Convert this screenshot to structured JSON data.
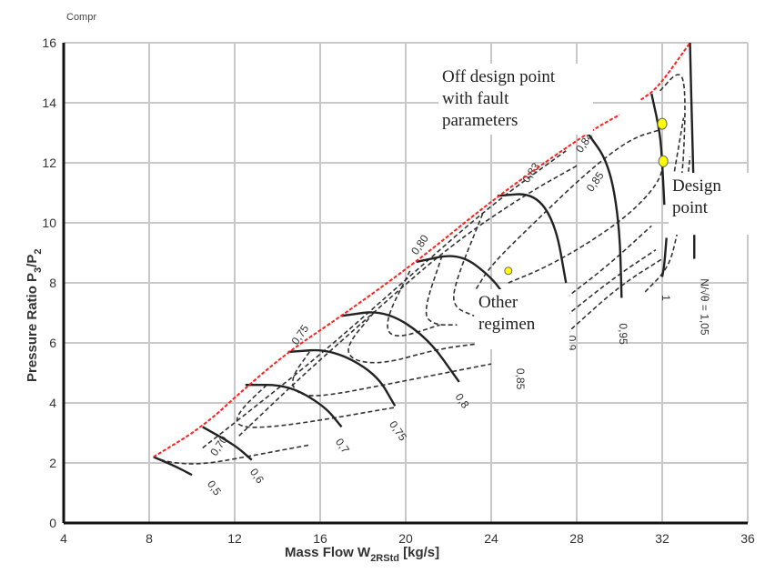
{
  "chart_data": {
    "type": "line",
    "title": "Compr",
    "xlabel": "Mass Flow W",
    "xlabel_sub": "2RStd",
    "xlabel_unit": " [kg/s]",
    "ylabel": "Pressure Ratio P",
    "ylabel_sub1": "3",
    "ylabel_mid": "/P",
    "ylabel_sub2": "2",
    "xlim": [
      4,
      36
    ],
    "ylim": [
      0,
      16
    ],
    "xticks": [
      "4",
      "8",
      "12",
      "16",
      "20",
      "24",
      "28",
      "32",
      "36"
    ],
    "yticks": [
      "0",
      "2",
      "4",
      "6",
      "8",
      "10",
      "12",
      "14",
      "16"
    ],
    "grid": true,
    "colors": {
      "surge": "#ff2020",
      "speed": "#222222",
      "efficiency": "#333333",
      "points": "#ffff00"
    },
    "surge_line": [
      [
        [
          8.2,
          2.2
        ],
        [
          10.5,
          3.2
        ],
        [
          12.5,
          4.5
        ],
        [
          14.5,
          5.7
        ],
        [
          17,
          6.9
        ],
        [
          20.5,
          8.7
        ],
        [
          24.3,
          10.9
        ],
        [
          28.5,
          13.0
        ],
        [
          30,
          13.6
        ]
      ],
      [
        [
          31,
          14.1
        ],
        [
          31.8,
          14.5
        ],
        [
          33.3,
          16.0
        ]
      ]
    ],
    "speed_lines": [
      {
        "label": "0,5",
        "points": [
          [
            8.2,
            2.2
          ],
          [
            9.2,
            1.9
          ],
          [
            10,
            1.6
          ]
        ],
        "label_at": [
          10.9,
          1.1
        ]
      },
      {
        "label": "0,6",
        "points": [
          [
            10.5,
            3.2
          ],
          [
            12,
            2.6
          ],
          [
            12.8,
            2.1
          ]
        ],
        "label_at": [
          12.9,
          1.5
        ]
      },
      {
        "label": "0,7",
        "points": [
          [
            12.5,
            4.6
          ],
          [
            14.5,
            4.6
          ],
          [
            16.2,
            3.9
          ],
          [
            17,
            3.2
          ]
        ],
        "label_at": [
          16.9,
          2.5
        ]
      },
      {
        "label": "0,75",
        "points": [
          [
            14.5,
            5.7
          ],
          [
            16.5,
            5.8
          ],
          [
            18.6,
            5.0
          ],
          [
            19.5,
            3.9
          ]
        ],
        "label_at": [
          19.5,
          3.0
        ]
      },
      {
        "label": "0,8",
        "points": [
          [
            17,
            6.9
          ],
          [
            19,
            7.1
          ],
          [
            21,
            6.2
          ],
          [
            22.5,
            4.7
          ]
        ],
        "label_at": [
          22.5,
          4.0
        ]
      },
      {
        "label": "0,85",
        "points": [
          [
            20.5,
            8.7
          ],
          [
            22.5,
            9.0
          ],
          [
            24,
            8.2
          ],
          [
            24.7,
            7.5
          ]
        ],
        "label_at": [
          25.2,
          4.8
        ]
      },
      {
        "label": "0,9",
        "points": [
          [
            24.3,
            10.9
          ],
          [
            26,
            11.0
          ],
          [
            27,
            10.0
          ],
          [
            27.5,
            8.0
          ]
        ],
        "label_at": [
          27.6,
          6.0
        ]
      },
      {
        "label": "0,95",
        "points": [
          [
            28.5,
            13.0
          ],
          [
            29.5,
            12.0
          ],
          [
            30,
            10.0
          ],
          [
            30.1,
            7.5
          ]
        ],
        "label_at": [
          30.0,
          6.3
        ]
      },
      {
        "label": "1",
        "points": [
          [
            31.5,
            14.3
          ],
          [
            31.9,
            13.0
          ],
          [
            32,
            12.0
          ],
          [
            32.1,
            10.6
          ]
        ],
        "label_at": [
          32.0,
          7.5
        ]
      },
      {
        "label": "N/√θ = 1,05",
        "points": [
          [
            33.3,
            16.0
          ],
          [
            33.4,
            13.0
          ],
          [
            33.5,
            10.5
          ]
        ],
        "label_at": [
          33.8,
          7.2
        ]
      }
    ],
    "speed_line_segments": [
      [
        [
          32.2,
          9.5
        ],
        [
          32.1,
          8.6
        ],
        [
          32.0,
          8.2
        ]
      ],
      [
        [
          33.5,
          9.6
        ],
        [
          33.5,
          8.8
        ]
      ]
    ],
    "efficiency_labels": [
      {
        "label": "0,70",
        "at": [
          11.4,
          2.5
        ]
      },
      {
        "label": "0,75",
        "at": [
          15.2,
          6.2
        ]
      },
      {
        "label": "0,80",
        "at": [
          20.8,
          9.2
        ]
      },
      {
        "label": "0,83",
        "at": [
          26.0,
          11.6
        ]
      },
      {
        "label": "0,84",
        "at": [
          28.5,
          12.6
        ]
      },
      {
        "label": "0,85",
        "at": [
          29.0,
          11.3
        ]
      }
    ],
    "efficiency_contours": [
      [
        [
          8.2,
          2.2
        ],
        [
          9,
          2.0
        ],
        [
          10.5,
          1.95
        ],
        [
          12.5,
          2.2
        ],
        [
          15.5,
          2.6
        ]
      ],
      [
        [
          13.5,
          4.6
        ],
        [
          12.3,
          3.8
        ],
        [
          12,
          3.3
        ],
        [
          12.8,
          3.15
        ],
        [
          15,
          3.3
        ],
        [
          19.5,
          3.85
        ]
      ],
      [
        [
          15.5,
          5.7
        ],
        [
          14.6,
          4.8
        ],
        [
          14.9,
          4.3
        ],
        [
          16,
          4.2
        ],
        [
          19,
          4.6
        ],
        [
          24,
          5.3
        ]
      ],
      [
        [
          18.5,
          7.0
        ],
        [
          17.2,
          5.9
        ],
        [
          17.5,
          5.4
        ],
        [
          19,
          5.3
        ],
        [
          21.5,
          5.8
        ],
        [
          23.7,
          6.0
        ]
      ],
      [
        [
          20.2,
          8.4
        ],
        [
          19,
          6.7
        ],
        [
          19.4,
          6.1
        ],
        [
          21.6,
          6.6
        ]
      ],
      [
        [
          21.7,
          8.9
        ],
        [
          20.8,
          7.0
        ],
        [
          21.3,
          6.6
        ],
        [
          22.4,
          6.6
        ]
      ],
      [
        [
          23.6,
          10.3
        ],
        [
          22.3,
          8.0
        ],
        [
          22.2,
          7.2
        ],
        [
          23.2,
          6.9
        ]
      ],
      [
        [
          10.5,
          2.5
        ],
        [
          13,
          3.9
        ],
        [
          16,
          5.6
        ],
        [
          20,
          8.1
        ],
        [
          24,
          10.6
        ],
        [
          27.5,
          12.4
        ]
      ],
      [
        [
          12.2,
          2.9
        ],
        [
          15,
          4.8
        ],
        [
          18,
          6.7
        ],
        [
          22,
          9.2
        ],
        [
          25.5,
          10.9
        ],
        [
          28,
          11.9
        ]
      ],
      [
        [
          23.3,
          7.8
        ],
        [
          24,
          8.6
        ],
        [
          26,
          10.0
        ],
        [
          28.5,
          11.7
        ],
        [
          30.5,
          12.8
        ],
        [
          31.9,
          13.1
        ]
      ],
      [
        [
          24.8,
          8.0
        ],
        [
          26.5,
          8.5
        ],
        [
          28.5,
          9.3
        ],
        [
          30.5,
          10.3
        ],
        [
          31.8,
          11.3
        ],
        [
          32.1,
          12
        ]
      ],
      [
        [
          27.5,
          7.5
        ],
        [
          29.5,
          8.6
        ],
        [
          31.5,
          9.9
        ]
      ],
      [
        [
          27.5,
          6.9
        ],
        [
          29.8,
          8.2
        ],
        [
          31.7,
          9.1
        ]
      ],
      [
        [
          27.5,
          6.3
        ],
        [
          30,
          7.9
        ],
        [
          32,
          8.8
        ]
      ],
      [
        [
          31.2,
          7.7
        ],
        [
          32.3,
          8.5
        ],
        [
          32.7,
          9.6
        ],
        [
          33.2,
          11.5
        ],
        [
          33.3,
          12.2
        ]
      ],
      [
        [
          31.9,
          14.4
        ],
        [
          32.8,
          15.1
        ],
        [
          33.1,
          14.5
        ],
        [
          33.0,
          12.0
        ],
        [
          32.8,
          11.0
        ]
      ],
      [
        [
          32.4,
          11.0
        ],
        [
          33.0,
          13.5
        ]
      ]
    ],
    "points": [
      {
        "name": "off-design-point",
        "at": [
          32.0,
          13.3
        ]
      },
      {
        "name": "design-point",
        "at": [
          32.05,
          12.05
        ]
      },
      {
        "name": "other-regimen-point",
        "at": [
          24.8,
          8.4
        ]
      }
    ],
    "annotations": {
      "off_design": [
        "Off design point",
        "with fault",
        "parameters"
      ],
      "design": [
        "Design",
        "point"
      ],
      "other": [
        "Other",
        "regimen"
      ]
    }
  }
}
